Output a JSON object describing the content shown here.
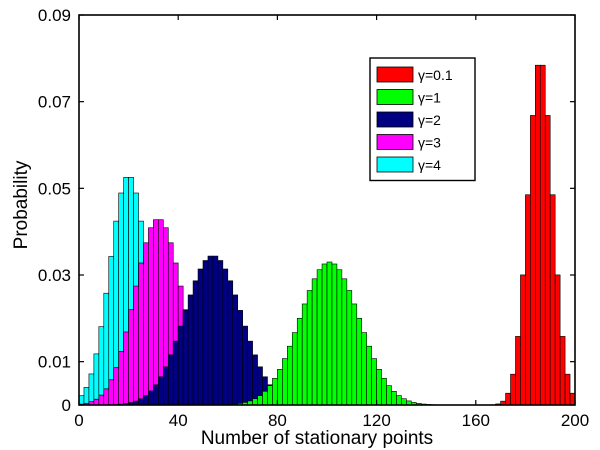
{
  "chart_data": {
    "type": "bar",
    "title": "",
    "xlabel": "Number of stationary points",
    "ylabel": "Probability",
    "xlim": [
      0,
      200
    ],
    "ylim": [
      0,
      0.09
    ],
    "xticks": [
      0,
      40,
      80,
      120,
      160,
      200
    ],
    "yticks": [
      0,
      0.01,
      0.03,
      0.05,
      0.07,
      0.09
    ],
    "ytick_labels": [
      "0",
      "0.01",
      "0.03",
      "0.05",
      "0.07",
      "0.09"
    ],
    "grid": false,
    "legend_position": "top-right",
    "bin_width": 2,
    "series": [
      {
        "name": "γ=0.1",
        "color": "#ff0000",
        "dist": {
          "mean": 186,
          "sd": 5,
          "peak": 0.08
        }
      },
      {
        "name": "γ=1",
        "color": "#00ff00",
        "dist": {
          "mean": 101,
          "sd": 12,
          "peak": 0.033
        }
      },
      {
        "name": "γ=2",
        "color": "#000080",
        "dist": {
          "mean": 54,
          "sd": 11.5,
          "peak": 0.0345
        }
      },
      {
        "name": "γ=3",
        "color": "#ff00ff",
        "dist": {
          "mean": 32,
          "sd": 9.5,
          "peak": 0.043
        }
      },
      {
        "name": "γ=4",
        "color": "#00ffff",
        "dist": {
          "mean": 20,
          "sd": 7.5,
          "peak": 0.053
        }
      }
    ],
    "draw_order": [
      4,
      3,
      2,
      1,
      0
    ]
  }
}
